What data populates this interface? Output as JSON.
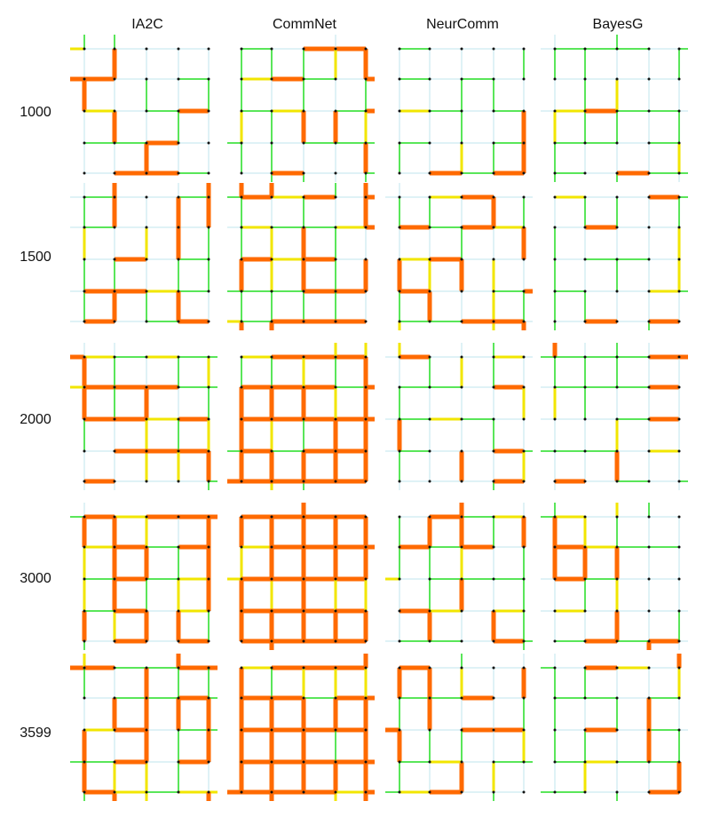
{
  "columns": [
    "IA2C",
    "CommNet",
    "NeurComm",
    "BayesG"
  ],
  "rows": [
    "1000",
    "1500",
    "2000",
    "3000",
    "3599"
  ]
}
